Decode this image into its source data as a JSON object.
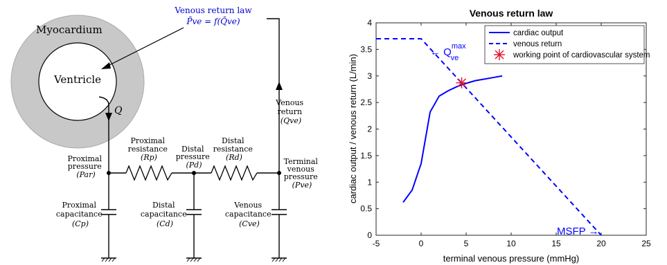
{
  "diagram": {
    "myocardium_label": "Myocardium",
    "ventricle_label": "Ventricle",
    "law_title": "Venous return law",
    "law_equation": "P̄ve = f(Q̄ve)",
    "flow_label": "Q",
    "venous_return": [
      "Venous",
      "return",
      "(Qve)"
    ],
    "proximal_pressure": [
      "Proximal",
      "pressure",
      "(Par)"
    ],
    "proximal_resistance": [
      "Proximal",
      "resistance",
      "(Rp)"
    ],
    "distal_pressure": [
      "Distal",
      "pressure",
      "(Pd)"
    ],
    "distal_resistance": [
      "Distal",
      "resistance",
      "(Rd)"
    ],
    "terminal_pressure": [
      "Terminal",
      "venous",
      "pressure",
      "(Pve)"
    ],
    "proximal_capacitance": [
      "Proximal",
      "capacitance",
      "(Cp)"
    ],
    "distal_capacitance": [
      "Distal",
      "capacitance",
      "(Cd)"
    ],
    "venous_capacitance": [
      "Venous",
      "capacitance",
      "(Cve)"
    ],
    "colors": {
      "myocardium": "#c8c8c8",
      "law": "#0000cc",
      "ink": "#000000"
    }
  },
  "chart_data": {
    "type": "line",
    "title": "Venous return law",
    "xlabel": "terminal venous pressure (mmHg)",
    "ylabel": "cardiac output / venous return (L/min)",
    "xlim": [
      -5,
      25
    ],
    "ylim": [
      0,
      4
    ],
    "xticks": [
      "-5",
      "0",
      "5",
      "10",
      "15",
      "20",
      "25"
    ],
    "yticks": [
      "0",
      "0.5",
      "1",
      "1.5",
      "2",
      "2.5",
      "3",
      "3.5",
      "4"
    ],
    "series": [
      {
        "name": "cardiac output",
        "style": "solid",
        "color": "#0000ff",
        "x": [
          -2,
          -1,
          0,
          1,
          2,
          3,
          4,
          5,
          6,
          7,
          8,
          9
        ],
        "y": [
          0.62,
          0.85,
          1.35,
          2.32,
          2.62,
          2.72,
          2.8,
          2.86,
          2.91,
          2.94,
          2.97,
          3.0
        ]
      },
      {
        "name": "venous return",
        "style": "dashed",
        "color": "#0000ff",
        "x": [
          -5,
          0,
          20
        ],
        "y": [
          3.7,
          3.7,
          0
        ]
      },
      {
        "name": "working point of cardiovascular system",
        "style": "marker",
        "color": "#e0102a",
        "x": [
          4.5
        ],
        "y": [
          2.87
        ]
      }
    ],
    "annotations": {
      "qmax": "← Q",
      "qmax_sup": "max",
      "qmax_sub": "ve",
      "msfp": "MSFP →"
    },
    "legend_position": "top-right",
    "grid": false
  }
}
